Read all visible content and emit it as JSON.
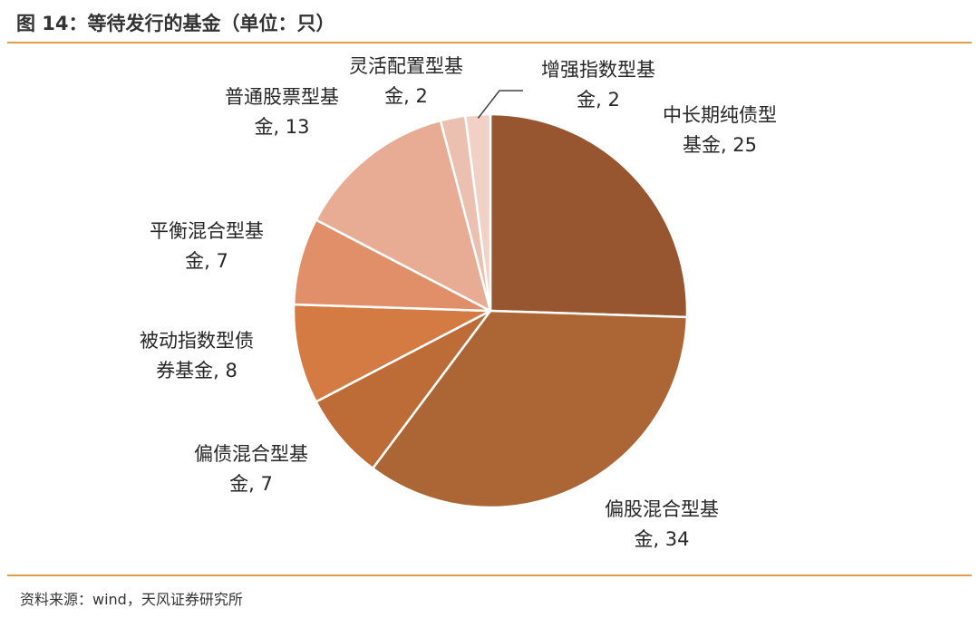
{
  "figure": {
    "title": "图 14：等待发行的基金（单位：只）",
    "source": "资料来源：wind，天风证券研究所"
  },
  "colors": {
    "rule": "#E39A4B",
    "slice_border": "#FFFFFF",
    "leader_line": "#404040"
  },
  "chart_data": {
    "type": "pie",
    "title": "",
    "start_angle": "12 o'clock",
    "direction": "clockwise",
    "slices": [
      {
        "name": "中长期纯债型基金",
        "value": 25,
        "label_lines": [
          "中长期纯债型",
          "基金, 25"
        ],
        "color": "#975630"
      },
      {
        "name": "偏股混合型基金",
        "value": 34,
        "label_lines": [
          "偏股混合型基",
          "金, 34"
        ],
        "color": "#AC6535"
      },
      {
        "name": "偏债混合型基金",
        "value": 7,
        "label_lines": [
          "偏债混合型基",
          "金, 7"
        ],
        "color": "#BD6C38"
      },
      {
        "name": "被动指数型债券基金",
        "value": 8,
        "label_lines": [
          "被动指数型债",
          "券基金, 8"
        ],
        "color": "#D47A43"
      },
      {
        "name": "平衡混合型基金",
        "value": 7,
        "label_lines": [
          "平衡混合型基",
          "金, 7"
        ],
        "color": "#E08F68"
      },
      {
        "name": "普通股票型基金",
        "value": 13,
        "label_lines": [
          "普通股票型基",
          "金, 13"
        ],
        "color": "#E7AC93"
      },
      {
        "name": "灵活配置型基金",
        "value": 2,
        "label_lines": [
          "灵活配置型基",
          "金, 2"
        ],
        "color": "#ECC0B0"
      },
      {
        "name": "增强指数型基金",
        "value": 2,
        "label_lines": [
          "增强指数型基",
          "金, 2"
        ],
        "color": "#F1D0C6"
      }
    ]
  }
}
